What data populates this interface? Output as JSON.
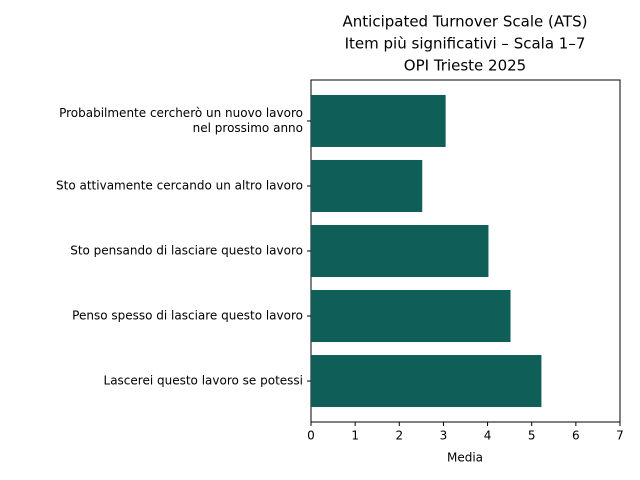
{
  "chart_data": {
    "type": "bar",
    "orientation": "horizontal",
    "title": [
      "Anticipated Turnover Scale (ATS)",
      "Item più significativi – Scala 1–7",
      "OPI Trieste 2025"
    ],
    "x_label": "Media",
    "categories": [
      [
        "Probabilmente cercherò un nuovo lavoro",
        "nel prossimo anno"
      ],
      [
        "Sto attivamente cercando un altro lavoro"
      ],
      [
        "Sto pensando di lasciare questo lavoro"
      ],
      [
        "Penso spesso di lasciare questo lavoro"
      ],
      [
        "Lascerei questo lavoro se potessi"
      ]
    ],
    "values": [
      3.05,
      2.52,
      4.02,
      4.52,
      5.22
    ],
    "color": "#0f5e58",
    "xlim": [
      0,
      7
    ],
    "xticks": [
      0,
      1,
      2,
      3,
      4,
      5,
      6,
      7
    ],
    "grid": false
  }
}
